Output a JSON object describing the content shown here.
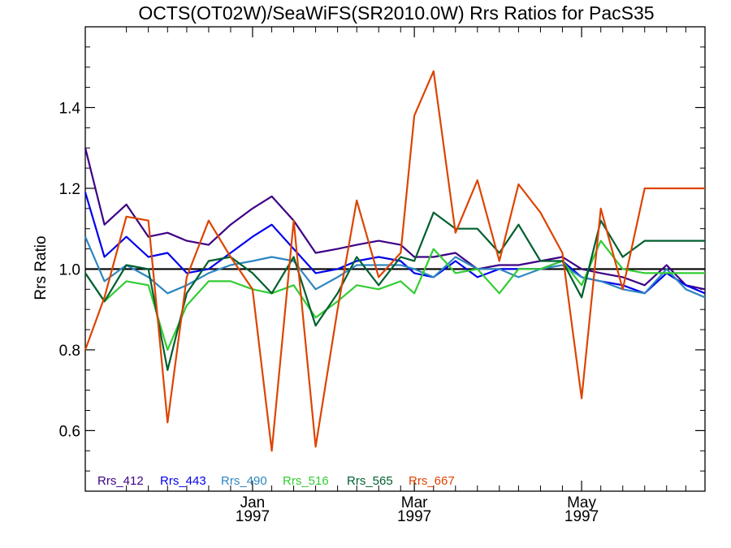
{
  "chart_data": {
    "type": "line",
    "title": "OCTS(OT02W)/SeaWiFS(SR2010.0W)  Rrs Ratios for PacS35",
    "ylabel": "Rrs Ratio",
    "xlabel": "",
    "x_range": [
      "1996-11-01",
      "1997-06-15"
    ],
    "ylim": [
      0.45,
      1.6
    ],
    "y_ticks": [
      {
        "value": 0.6,
        "label": "0.6"
      },
      {
        "value": 0.8,
        "label": "0.8"
      },
      {
        "value": 1.0,
        "label": "1.0"
      },
      {
        "value": 1.2,
        "label": "1.2"
      },
      {
        "value": 1.4,
        "label": "1.4"
      }
    ],
    "x_ticks": [
      {
        "date": "1997-01-01",
        "month": "Jan",
        "year": "1997"
      },
      {
        "date": "1997-03-01",
        "month": "Mar",
        "year": "1997"
      },
      {
        "date": "1997-05-01",
        "month": "May",
        "year": "1997"
      }
    ],
    "x_minor_ticks": [
      "1996-11-16",
      "1996-11-24",
      "1996-12-01",
      "1996-12-08",
      "1996-12-16",
      "1996-12-24",
      "1997-01-08",
      "1997-01-16",
      "1997-01-24",
      "1997-02-01",
      "1997-02-08",
      "1997-02-16",
      "1997-02-24",
      "1997-03-08",
      "1997-03-16",
      "1997-03-24",
      "1997-04-01",
      "1997-04-08",
      "1997-04-16",
      "1997-04-24",
      "1997-05-08",
      "1997-05-16",
      "1997-05-24",
      "1997-06-01",
      "1997-06-08"
    ],
    "reference_line": 1.0,
    "grid": false,
    "legend_placement": "bottom-left",
    "dates": [
      "1996-11-01",
      "1996-11-08",
      "1996-11-16",
      "1996-11-24",
      "1996-12-01",
      "1996-12-08",
      "1996-12-16",
      "1996-12-24",
      "1997-01-01",
      "1997-01-08",
      "1997-01-16",
      "1997-01-24",
      "1997-02-01",
      "1997-02-08",
      "1997-02-16",
      "1997-02-24",
      "1997-03-01",
      "1997-03-08",
      "1997-03-16",
      "1997-03-24",
      "1997-04-01",
      "1997-04-08",
      "1997-04-16",
      "1997-04-24",
      "1997-05-01",
      "1997-05-08",
      "1997-05-16",
      "1997-05-24",
      "1997-06-01",
      "1997-06-08",
      "1997-06-15"
    ],
    "series": [
      {
        "name": "Rrs_412",
        "color": "#3d0085",
        "values": [
          1.3,
          1.11,
          1.16,
          1.08,
          1.09,
          1.07,
          1.06,
          1.11,
          1.15,
          1.18,
          1.12,
          1.04,
          1.05,
          1.06,
          1.07,
          1.06,
          1.03,
          1.03,
          1.04,
          1.0,
          1.01,
          1.01,
          1.02,
          1.03,
          1.0,
          0.99,
          0.98,
          0.96,
          1.01,
          0.96,
          0.95
        ]
      },
      {
        "name": "Rrs_443",
        "color": "#0000ee",
        "values": [
          1.19,
          1.03,
          1.08,
          1.03,
          1.04,
          0.99,
          1.0,
          1.04,
          1.08,
          1.11,
          1.05,
          0.99,
          1.0,
          1.02,
          1.03,
          1.02,
          0.99,
          0.98,
          1.02,
          0.98,
          1.0,
          1.0,
          1.0,
          1.02,
          0.98,
          0.97,
          0.96,
          0.94,
          0.99,
          0.96,
          0.94
        ]
      },
      {
        "name": "Rrs_490",
        "color": "#2e86c1",
        "values": [
          1.08,
          0.97,
          1.01,
          0.98,
          0.94,
          0.96,
          0.99,
          1.01,
          1.02,
          1.03,
          1.02,
          0.95,
          0.98,
          1.01,
          1.01,
          1.01,
          1.0,
          0.98,
          1.03,
          1.0,
          1.0,
          0.98,
          1.0,
          1.01,
          0.98,
          0.97,
          0.95,
          0.94,
          1.0,
          0.95,
          0.93
        ]
      },
      {
        "name": "Rrs_516",
        "color": "#33cc33",
        "values": [
          0.99,
          0.92,
          0.97,
          0.96,
          0.8,
          0.91,
          0.97,
          0.97,
          0.95,
          0.94,
          0.96,
          0.88,
          0.92,
          0.96,
          0.95,
          0.97,
          0.94,
          1.05,
          0.99,
          1.0,
          0.94,
          1.0,
          1.0,
          1.02,
          0.96,
          1.07,
          1.0,
          0.99,
          0.99,
          0.99,
          0.99
        ]
      },
      {
        "name": "Rrs_565",
        "color": "#005f2f",
        "values": [
          0.99,
          0.92,
          1.01,
          1.0,
          0.75,
          0.94,
          1.02,
          1.03,
          0.99,
          0.94,
          1.03,
          0.86,
          0.94,
          1.03,
          0.96,
          1.03,
          1.02,
          1.14,
          1.1,
          1.1,
          1.04,
          1.11,
          1.02,
          1.02,
          0.93,
          1.12,
          1.03,
          1.07,
          1.07,
          1.07,
          1.07
        ]
      },
      {
        "name": "Rrs_667",
        "color": "#dd4400",
        "values": [
          0.8,
          0.93,
          1.13,
          1.12,
          0.62,
          0.98,
          1.12,
          1.03,
          0.95,
          0.55,
          1.12,
          0.56,
          0.9,
          1.17,
          0.98,
          1.04,
          1.38,
          1.49,
          1.09,
          1.22,
          1.02,
          1.21,
          1.14,
          1.04,
          0.68,
          1.15,
          0.95,
          1.2,
          1.2,
          1.2,
          1.2
        ]
      }
    ]
  }
}
